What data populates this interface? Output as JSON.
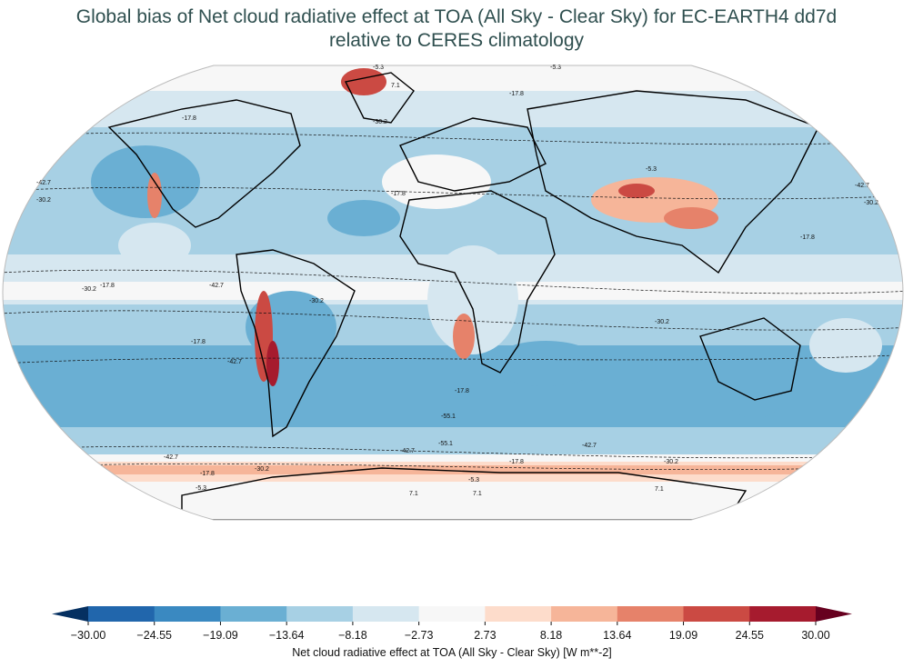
{
  "title_line1": "Global bias of Net cloud radiative effect at TOA (All Sky - Clear Sky) for EC-EARTH4 dd7d",
  "title_line2": "relative to CERES climatology",
  "chart_data": {
    "type": "heatmap",
    "projection": "Robinson",
    "title": "Global bias of Net cloud radiative effect at TOA (All Sky - Clear Sky) for EC-EARTH4 dd7d relative to CERES climatology",
    "colorbar": {
      "label": "Net cloud radiative effect at TOA (All Sky - Clear Sky) [W m**-2]",
      "ticks": [
        "−30.00",
        "−24.55",
        "−19.09",
        "−13.64",
        "−8.18",
        "−2.73",
        "2.73",
        "8.18",
        "13.64",
        "19.09",
        "24.55",
        "30.00"
      ],
      "range": [
        -30,
        30
      ],
      "extend": "both",
      "under_color": "#053061",
      "over_color": "#67001f",
      "colors": [
        "#2166ac",
        "#3a89c1",
        "#6aafd3",
        "#a7d0e4",
        "#d6e7f0",
        "#f7f7f7",
        "#fddccb",
        "#f6b599",
        "#e6826a",
        "#cb4a43",
        "#a61b2e"
      ]
    },
    "contour_levels": [
      "-55.1",
      "-42.7",
      "-30.2",
      "-17.8",
      "-5.3",
      "7.1"
    ],
    "contour_labels": [
      "-5.3",
      "7.1",
      "-5.3",
      "-17.8",
      "-30.2",
      "-17.8",
      "-42.7",
      "-30.2",
      "-42.7",
      "-30.2",
      "-17.8",
      "-17.8",
      "-42.7",
      "-30.2",
      "-17.8",
      "-42.7",
      "-30.2",
      "-17.8",
      "-55.1",
      "-55.1",
      "-42.7",
      "-42.7",
      "-17.8",
      "-30.2",
      "-42.7",
      "-17.8",
      "-30.2",
      "-5.3",
      "-5.3",
      "7.1",
      "7.1",
      "7.1",
      "-30.2",
      "-17.8",
      "-5.3"
    ]
  }
}
